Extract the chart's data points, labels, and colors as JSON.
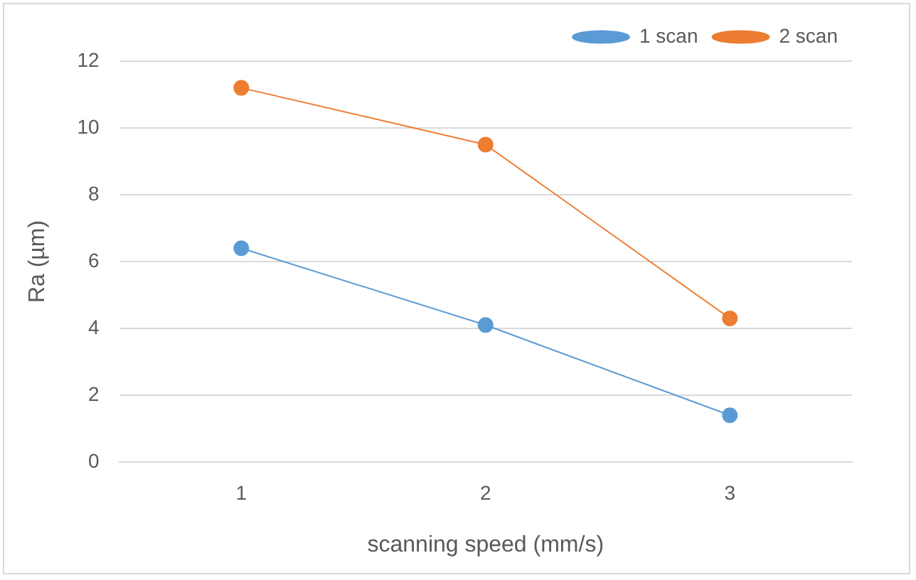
{
  "chart_data": {
    "type": "line",
    "xlabel": "scanning speed (mm/s)",
    "ylabel": "Ra (µm)",
    "categories": [
      "1",
      "2",
      "3"
    ],
    "series": [
      {
        "name": "1 scan",
        "color": "#5b9bd5",
        "values": [
          6.4,
          4.1,
          1.4
        ]
      },
      {
        "name": "2 scan",
        "color": "#ed7d31",
        "values": [
          11.2,
          9.5,
          4.3
        ]
      }
    ],
    "ylim": [
      0,
      12
    ],
    "yticks": [
      0,
      2,
      4,
      6,
      8,
      10,
      12
    ],
    "grid": "y",
    "legend": "top right",
    "marker": "circle",
    "line_style": "solid"
  }
}
